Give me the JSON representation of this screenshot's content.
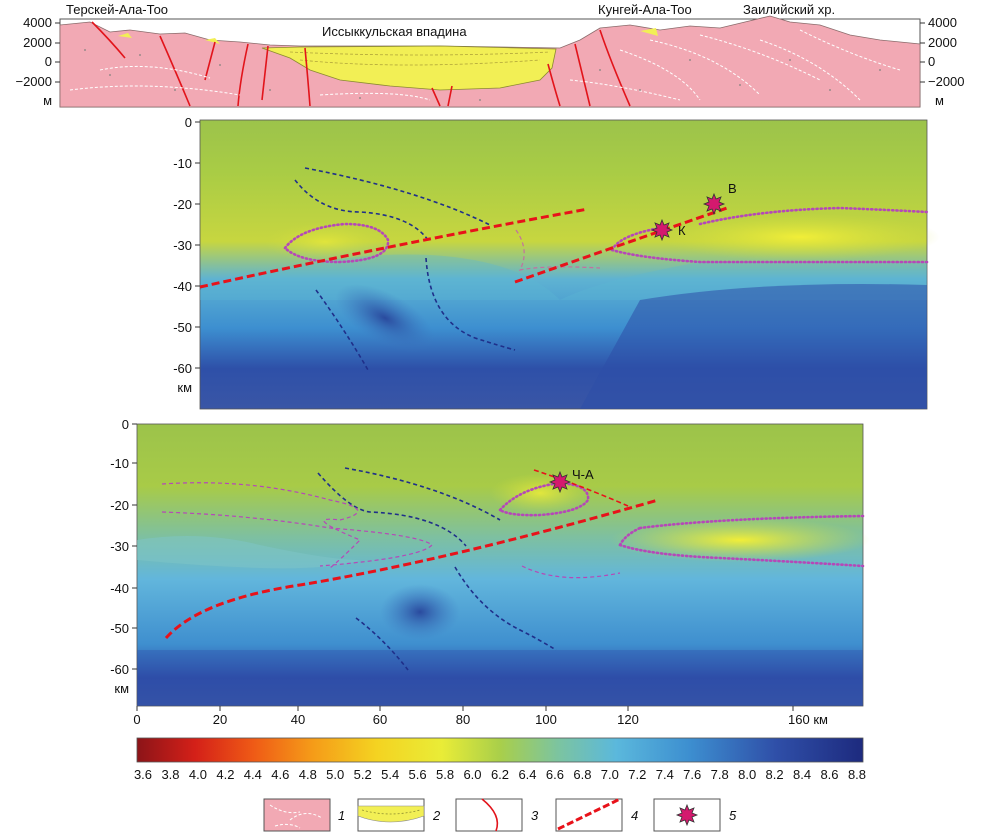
{
  "profile": {
    "labels": {
      "tersk": "Терскей-Ала-Тоо",
      "issyk": "Иссыккульская впадина",
      "kungey": "Кунгей-Ала-Тоо",
      "zailiy": "Заилийский хр."
    },
    "left_ticks": [
      "4000",
      "2000",
      "0",
      "−2000",
      "м"
    ],
    "right_ticks": [
      "4000",
      "2000",
      "0",
      "−2000",
      "м"
    ]
  },
  "section1": {
    "depth_ticks": [
      "0",
      "-10",
      "-20",
      "-30",
      "-40",
      "-50",
      "-60",
      "км"
    ],
    "markers": [
      {
        "label": "В"
      },
      {
        "label": "К"
      }
    ]
  },
  "section2": {
    "depth_ticks": [
      "0",
      "-10",
      "-20",
      "-30",
      "-40",
      "-50",
      "-60",
      "км"
    ],
    "markers": [
      {
        "label": "Ч-А"
      }
    ],
    "x_ticks": [
      "0",
      "20",
      "40",
      "60",
      "80",
      "100",
      "120",
      "160 км"
    ]
  },
  "colorbar": {
    "ticks": [
      "3.6",
      "3.8",
      "4.0",
      "4.2",
      "4.4",
      "4.6",
      "4.8",
      "5.0",
      "5.2",
      "5.4",
      "5.6",
      "5.8",
      "6.0",
      "6.2",
      "6.4",
      "6.6",
      "6.8",
      "7.0",
      "7.2",
      "7.4",
      "7.6",
      "7.8",
      "8.0",
      "8.2",
      "8.4",
      "8.6",
      "8.8"
    ]
  },
  "legend": {
    "items": [
      {
        "num": "1",
        "icon": "granite-icon"
      },
      {
        "num": "2",
        "icon": "sediment-icon"
      },
      {
        "num": "3",
        "icon": "fault-icon"
      },
      {
        "num": "4",
        "icon": "dashed-boundary-icon"
      },
      {
        "num": "5",
        "icon": "earthquake-star-icon"
      }
    ]
  },
  "colors": {
    "rock": "#f2a9b4",
    "sediment": "#f2ef55",
    "fault": "#e2141b",
    "boundary": "#e8121a",
    "star": "#d4196e",
    "purple": "#b548b8",
    "navy": "#1f2f8a"
  }
}
